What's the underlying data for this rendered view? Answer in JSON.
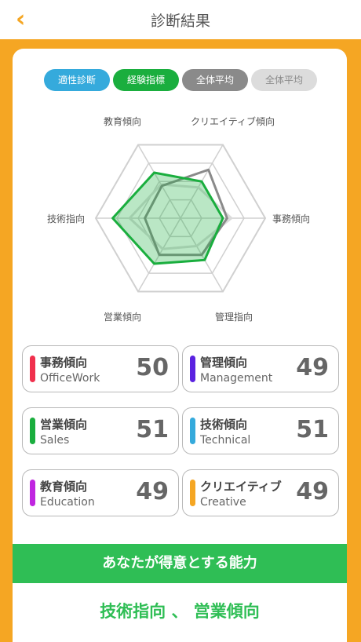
{
  "nav": {
    "back_icon": "chevron-left",
    "title": "診断結果"
  },
  "tabs": [
    {
      "label": "適性診断",
      "color": "#35aadc"
    },
    {
      "label": "経験指標",
      "color": "#1aae3e"
    },
    {
      "label": "全体平均",
      "color": "#8a8a8a"
    },
    {
      "label": "全体平均",
      "color": "#dcdcdc"
    }
  ],
  "radar": {
    "axes": [
      "教育傾向",
      "クリエイティブ傾向",
      "事務傾向",
      "管理指向",
      "営業傾向",
      "技術指向"
    ],
    "series": [
      {
        "values": [
          0.62,
          0.5,
          0.5,
          0.57,
          0.62,
          0.8
        ],
        "color": "#1aae3e"
      },
      {
        "values": [
          0.44,
          0.66,
          0.55,
          0.5,
          0.5,
          0.42
        ],
        "color": "#8a8a8a"
      },
      {
        "values": [
          0.46,
          0.42,
          0.6,
          0.38,
          0.42,
          0.6
        ],
        "color": "#dcdcdc"
      }
    ]
  },
  "stats": [
    {
      "jp": "事務傾向",
      "en": "OfficeWork",
      "value": "50",
      "color": "#f0304d"
    },
    {
      "jp": "管理傾向",
      "en": "Management",
      "value": "49",
      "color": "#5a22e0"
    },
    {
      "jp": "営業傾向",
      "en": "Sales",
      "value": "51",
      "color": "#1aae3e"
    },
    {
      "jp": "技術傾向",
      "en": "Technical",
      "value": "51",
      "color": "#35aadc"
    },
    {
      "jp": "教育傾向",
      "en": "Education",
      "value": "49",
      "color": "#c026e0"
    },
    {
      "jp": "クリエイティブ",
      "en": "Creative",
      "value": "49",
      "color": "#f5a623"
    }
  ],
  "strength": {
    "title": "あなたが得意とする能力",
    "value": "技術指向 、 営業傾向"
  }
}
